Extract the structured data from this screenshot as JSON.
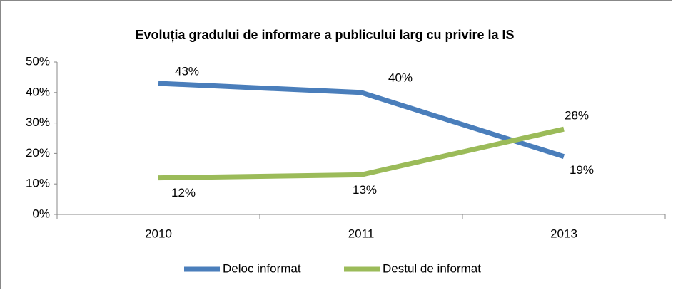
{
  "chart_data": {
    "type": "line",
    "title": "Evoluția gradului de informare a publicului larg cu privire la IS",
    "categories": [
      "2010",
      "2011",
      "2013"
    ],
    "series": [
      {
        "name": "Deloc informat",
        "color": "#4a7ebb",
        "values": [
          43,
          40,
          19
        ],
        "value_labels": [
          "43%",
          "40%",
          "19%"
        ]
      },
      {
        "name": "Destul de informat",
        "color": "#9bbb59",
        "values": [
          12,
          13,
          28
        ],
        "value_labels": [
          "12%",
          "13%",
          "28%"
        ]
      }
    ],
    "ylim": [
      0,
      50
    ],
    "yticks": [
      {
        "value": 0,
        "label": "0%"
      },
      {
        "value": 10,
        "label": "10%"
      },
      {
        "value": 20,
        "label": "20%"
      },
      {
        "value": 30,
        "label": "30%"
      },
      {
        "value": 40,
        "label": "40%"
      },
      {
        "value": 50,
        "label": "50%"
      }
    ],
    "grid": false,
    "legend": "bottom"
  }
}
